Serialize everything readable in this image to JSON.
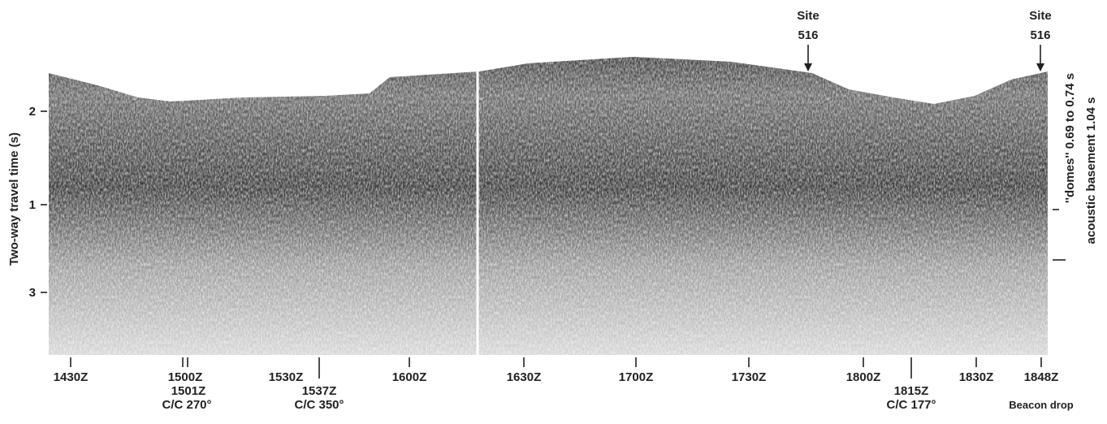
{
  "axis": {
    "title": "Two-way travel time (s)",
    "ticks": [
      "2",
      "1",
      "3"
    ]
  },
  "sites": [
    {
      "label": "Site",
      "number": "516"
    },
    {
      "label": "Site",
      "number": "516"
    }
  ],
  "time_labels": [
    "1430Z",
    "1500Z",
    "1501Z",
    "C/C 270°",
    "1530Z",
    "1537Z",
    "C/C 350°",
    "1600Z",
    "1630Z",
    "1700Z",
    "1730Z",
    "1800Z",
    "1815Z",
    "C/C 177°",
    "1830Z",
    "1848Z",
    "Beacon drop"
  ],
  "annotations": [
    "''domes'' 0.69 to 0.74 s",
    "acoustic basement 1.04 s"
  ]
}
